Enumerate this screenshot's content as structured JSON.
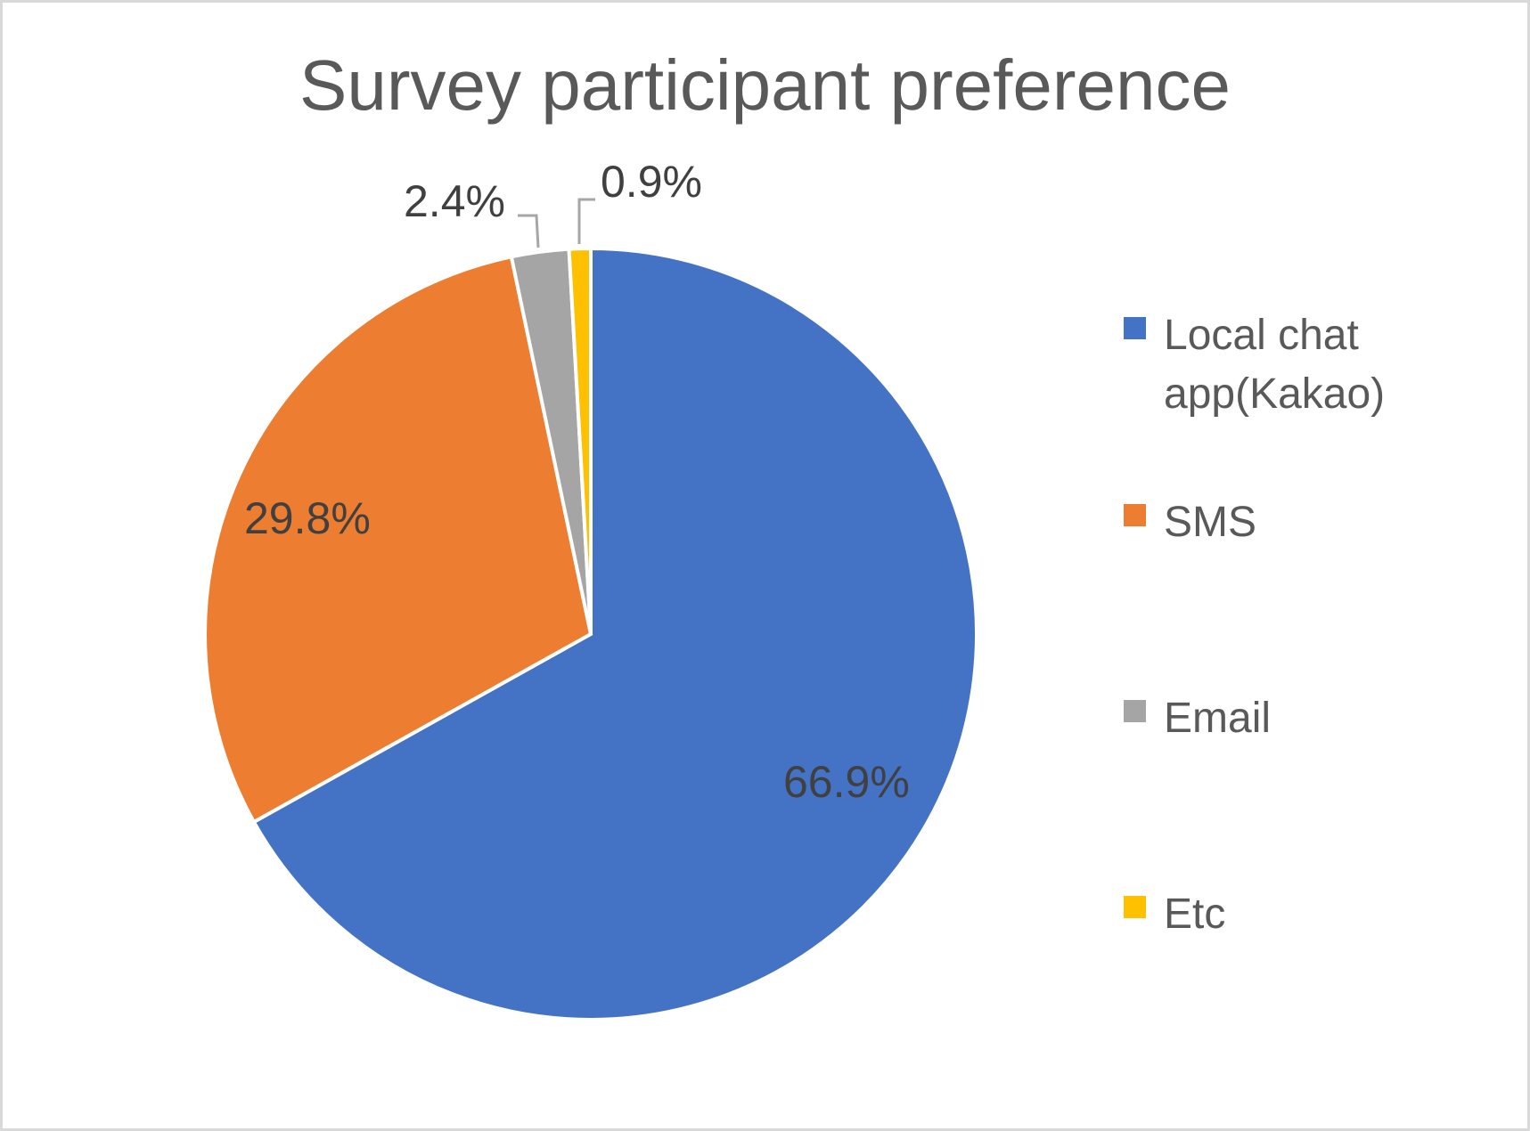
{
  "chart_data": {
    "type": "pie",
    "title": "Survey participant preference",
    "categories": [
      "Local chat app(Kakao)",
      "SMS",
      "Email",
      "Etc"
    ],
    "values": [
      66.9,
      29.8,
      2.4,
      0.9
    ],
    "labels": [
      "66.9%",
      "29.8%",
      "2.4%",
      "0.9%"
    ],
    "colors": [
      "#4472c4",
      "#ed7d31",
      "#a5a5a5",
      "#ffc000"
    ],
    "start_angle": "12 o'clock",
    "direction": "clockwise",
    "legend_position": "right"
  },
  "title": "Survey participant preference",
  "legend": [
    {
      "label": "Local chat app(Kakao)",
      "color": "#4472c4"
    },
    {
      "label": "SMS",
      "color": "#ed7d31"
    },
    {
      "label": "Email",
      "color": "#a5a5a5"
    },
    {
      "label": "Etc",
      "color": "#ffc000"
    }
  ],
  "data_labels": {
    "local_chat": "66.9%",
    "sms": "29.8%",
    "email": "2.4%",
    "etc": "0.9%"
  }
}
